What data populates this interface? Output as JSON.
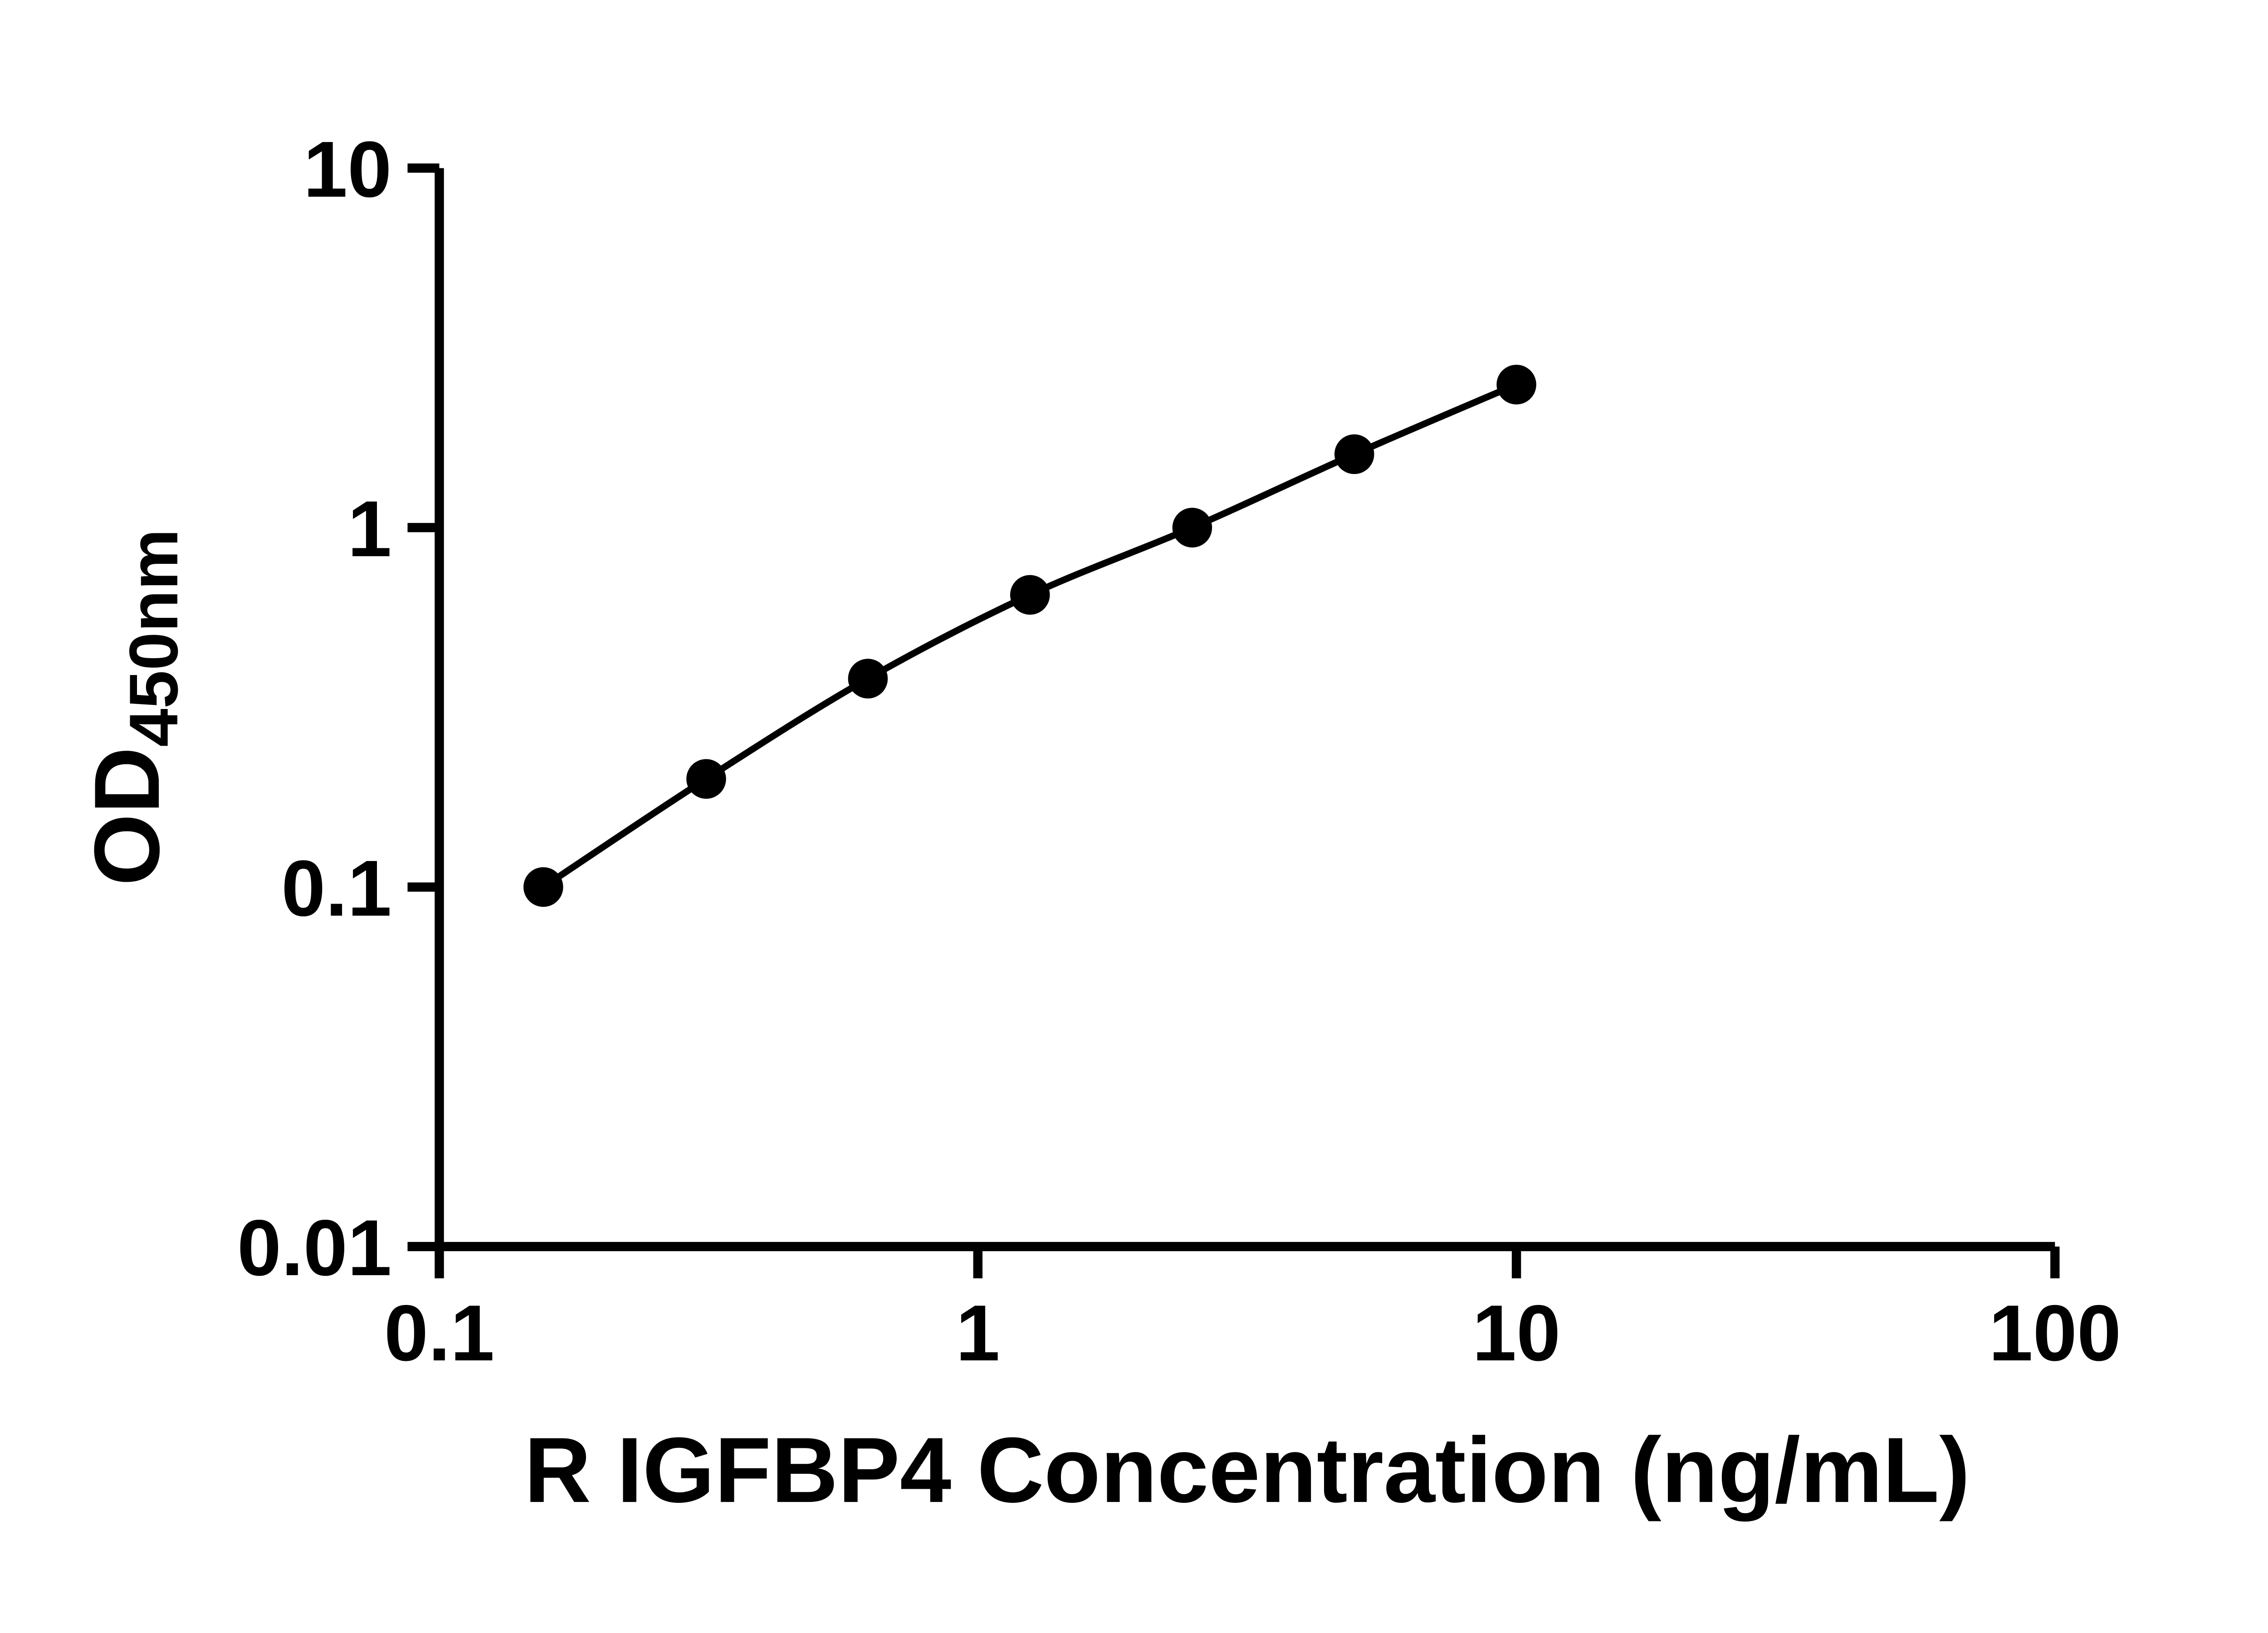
{
  "page": {
    "background_color": "#ffffff",
    "ink_color": "#000000"
  },
  "chart_data": {
    "type": "scatter",
    "line_through_points": true,
    "xlabel": "R IGFBP4 Concentration (ng/mL)",
    "ylabel_main": "OD",
    "ylabel_sub": "450nm",
    "ylabel_full": "OD450nm",
    "x_scale": "log10",
    "y_scale": "log10",
    "xlim": [
      0.1,
      100
    ],
    "ylim": [
      0.01,
      10
    ],
    "grid": false,
    "legend": null,
    "x_ticks": [
      {
        "value": 0.1,
        "label": "0.1"
      },
      {
        "value": 1,
        "label": "1"
      },
      {
        "value": 10,
        "label": "10"
      },
      {
        "value": 100,
        "label": "100"
      }
    ],
    "y_ticks": [
      {
        "value": 0.01,
        "label": "0.01"
      },
      {
        "value": 0.1,
        "label": "0.1"
      },
      {
        "value": 1,
        "label": "1"
      },
      {
        "value": 10,
        "label": "10"
      }
    ],
    "points": [
      {
        "x": 0.156,
        "y": 0.1
      },
      {
        "x": 0.313,
        "y": 0.2
      },
      {
        "x": 0.625,
        "y": 0.38
      },
      {
        "x": 1.25,
        "y": 0.65
      },
      {
        "x": 2.5,
        "y": 1.0
      },
      {
        "x": 5,
        "y": 1.6
      },
      {
        "x": 10,
        "y": 2.5
      }
    ],
    "marker_color": "#000000",
    "line_color": "#000000",
    "axis_color": "#000000"
  }
}
